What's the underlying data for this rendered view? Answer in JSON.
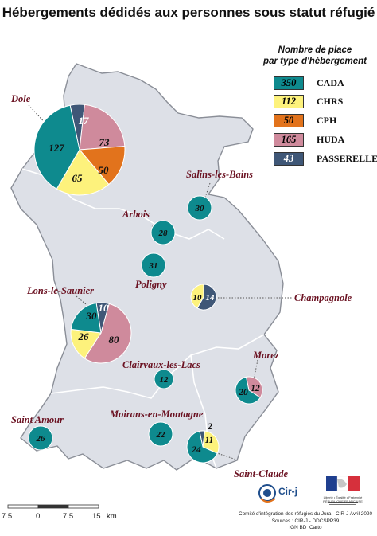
{
  "title": "Hébergements dédidés aux personnes sous statut réfugié",
  "legend": {
    "title_line1": "Nombre de place",
    "title_line2": "par type d'hébergement",
    "items": [
      {
        "value": "350",
        "label": "CADA",
        "color": "#0e8a8e"
      },
      {
        "value": "112",
        "label": "CHRS",
        "color": "#fdf27c"
      },
      {
        "value": "50",
        "label": "CPH",
        "color": "#e2731c"
      },
      {
        "value": "165",
        "label": "HUDA",
        "color": "#cf8a9c"
      },
      {
        "value": "43",
        "label": "PASSERELLE",
        "color": "#3f5777"
      }
    ]
  },
  "colors": {
    "CADA": "#0e8a8e",
    "CHRS": "#fdf27c",
    "CPH": "#e2731c",
    "HUDA": "#cf8a9c",
    "PASSERELLE": "#3f5777",
    "land": "#dde0e7",
    "border": "#8a8e97",
    "town_label": "#6b1222"
  },
  "towns": [
    {
      "name": "Dole",
      "total": 332,
      "slices": [
        {
          "type": "PASSERELLE",
          "value": 17
        },
        {
          "type": "HUDA",
          "value": 73
        },
        {
          "type": "CPH",
          "value": 50
        },
        {
          "type": "CHRS",
          "value": 65
        },
        {
          "type": "CADA",
          "value": 127
        }
      ]
    },
    {
      "name": "Salins-les-Bains",
      "total": 30,
      "slices": [
        {
          "type": "CADA",
          "value": 30
        }
      ]
    },
    {
      "name": "Arbois",
      "total": 28,
      "slices": [
        {
          "type": "CADA",
          "value": 28
        }
      ]
    },
    {
      "name": "Poligny",
      "total": 31,
      "slices": [
        {
          "type": "CADA",
          "value": 31
        }
      ]
    },
    {
      "name": "Champagnole",
      "total": 24,
      "slices": [
        {
          "type": "PASSERELLE",
          "value": 14
        },
        {
          "type": "CHRS",
          "value": 10
        }
      ]
    },
    {
      "name": "Lons-le-Saunier",
      "total": 146,
      "slices": [
        {
          "type": "PASSERELLE",
          "value": 10
        },
        {
          "type": "HUDA",
          "value": 80
        },
        {
          "type": "CHRS",
          "value": 26
        },
        {
          "type": "CADA",
          "value": 30
        }
      ]
    },
    {
      "name": "Clairvaux-les-Lacs",
      "total": 12,
      "slices": [
        {
          "type": "CADA",
          "value": 12
        }
      ]
    },
    {
      "name": "Morez",
      "total": 32,
      "slices": [
        {
          "type": "HUDA",
          "value": 12
        },
        {
          "type": "CADA",
          "value": 20
        }
      ]
    },
    {
      "name": "Saint Amour",
      "total": 26,
      "slices": [
        {
          "type": "CADA",
          "value": 26
        }
      ]
    },
    {
      "name": "Moirans-en-Montagne",
      "total": 22,
      "slices": [
        {
          "type": "CADA",
          "value": 22
        }
      ]
    },
    {
      "name": "Saint-Claude",
      "total": 37,
      "slices": [
        {
          "type": "PASSERELLE",
          "value": 2
        },
        {
          "type": "CHRS",
          "value": 11
        },
        {
          "type": "CADA",
          "value": 24
        }
      ]
    }
  ],
  "scale": {
    "labels": [
      "7.5",
      "0",
      "7.5",
      "15"
    ],
    "unit": "km"
  },
  "credits": {
    "line1": "Comité d'intégration des réfugiés du Jura - CIR-J Avril 2020",
    "line2": "Sources : CIR-J - DDCSPP39",
    "line3": "IGN BD_Carto"
  },
  "logos": {
    "cirj": "Cir-j",
    "republique_motto": "Liberté • Égalité • Fraternité",
    "republique": "RÉPUBLIQUE FRANÇAISE"
  }
}
